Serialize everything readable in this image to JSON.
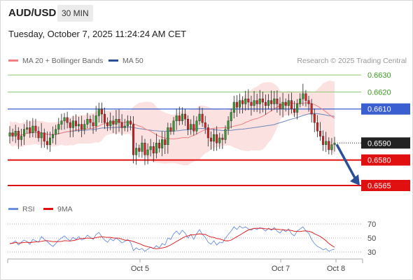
{
  "header": {
    "pair": "AUD/USD",
    "timeframe": "30 MIN",
    "datetime": "Tuesday, October 7, 2025 11:24:24 AM CET"
  },
  "legend": {
    "ma20_label": "MA 20 + Bollinger Bands",
    "ma50_label": "MA 50",
    "credit": "Research © 2025 Trading Central",
    "rsi_label": "RSI",
    "ma9_label": "9MA"
  },
  "colors": {
    "bullish_candle": "#2e9b2e",
    "bearish_candle": "#d42020",
    "bollinger_fill": "#fcdcdc",
    "ma20": "#f08080",
    "ma50": "#6e86b8",
    "resistance": "#8cc870",
    "pivot": "#3a5fd0",
    "support": "#e01010",
    "arrow": "#2a4f96",
    "rsi": "#6a8ee0",
    "rsi_ma": "#e01010"
  },
  "chart_data": [
    {
      "type": "candlestick",
      "title": "AUD/USD 30 MIN",
      "ylim": [
        0.6558,
        0.6635
      ],
      "x_ticks": [
        "Oct 5",
        "Oct 7",
        "Oct 8"
      ],
      "levels": [
        {
          "value": 0.663,
          "label": "0.6630",
          "kind": "resistance"
        },
        {
          "value": 0.662,
          "label": "0.6620",
          "kind": "resistance"
        },
        {
          "value": 0.661,
          "label": "0.6610",
          "kind": "pivot"
        },
        {
          "value": 0.659,
          "label": "0.6590",
          "kind": "last_price"
        },
        {
          "value": 0.658,
          "label": "0.6580",
          "kind": "support"
        },
        {
          "value": 0.6565,
          "label": "0.6565",
          "kind": "support"
        }
      ],
      "forecast_arrow": {
        "from": 0.659,
        "to": 0.6565
      },
      "series": [
        {
          "name": "Price",
          "close": [
            0.6596,
            0.6594,
            0.6597,
            0.6592,
            0.6594,
            0.6598,
            0.6599,
            0.6596,
            0.66,
            0.6597,
            0.6593,
            0.6596,
            0.6591,
            0.6589,
            0.6593,
            0.6595,
            0.6598,
            0.6601,
            0.6603,
            0.6605,
            0.6602,
            0.6599,
            0.6603,
            0.66,
            0.6601,
            0.6598,
            0.6601,
            0.6604,
            0.6602,
            0.66,
            0.6606,
            0.661,
            0.6607,
            0.6602,
            0.66,
            0.6603,
            0.6601,
            0.6604,
            0.6602,
            0.6599,
            0.66,
            0.6603,
            0.6601,
            0.6583,
            0.6587,
            0.6585,
            0.659,
            0.6583,
            0.6586,
            0.6588,
            0.6584,
            0.659,
            0.6587,
            0.6592,
            0.6589,
            0.6599,
            0.6597,
            0.6603,
            0.6606,
            0.6603,
            0.6607,
            0.6604,
            0.6598,
            0.6601,
            0.6597,
            0.6603,
            0.6607,
            0.6602,
            0.6599,
            0.6593,
            0.6591,
            0.6595,
            0.659,
            0.6593,
            0.6592,
            0.6598,
            0.6603,
            0.6608,
            0.6614,
            0.6611,
            0.6615,
            0.6613,
            0.6616,
            0.6614,
            0.6612,
            0.6615,
            0.6613,
            0.6616,
            0.6614,
            0.6612,
            0.6615,
            0.6613,
            0.6616,
            0.6613,
            0.661,
            0.6614,
            0.6612,
            0.6615,
            0.661,
            0.6608,
            0.6613,
            0.6616,
            0.6619,
            0.6615,
            0.6613,
            0.6607,
            0.6602,
            0.6597,
            0.6594,
            0.6589,
            0.6591,
            0.6586,
            0.6589,
            0.659
          ]
        },
        {
          "name": "MA 20",
          "values": []
        },
        {
          "name": "MA 50",
          "values": []
        }
      ]
    },
    {
      "type": "line",
      "title": "RSI",
      "ylim": [
        25,
        75
      ],
      "y_ticks": [
        70,
        50,
        30
      ],
      "series": [
        {
          "name": "RSI",
          "values": [
            42,
            43,
            46,
            40,
            44,
            47,
            45,
            41,
            48,
            46,
            44,
            52,
            48,
            45,
            41,
            38,
            42,
            47,
            50,
            53,
            49,
            46,
            51,
            48,
            52,
            47,
            49,
            54,
            51,
            48,
            55,
            58,
            52,
            47,
            44,
            49,
            46,
            50,
            47,
            43,
            45,
            48,
            44,
            32,
            36,
            33,
            35,
            31,
            34,
            37,
            35,
            39,
            36,
            42,
            40,
            50,
            48,
            56,
            60,
            55,
            61,
            57,
            50,
            55,
            48,
            56,
            62,
            55,
            51,
            44,
            41,
            46,
            40,
            44,
            43,
            50,
            55,
            60,
            66,
            62,
            67,
            64,
            66,
            63,
            61,
            64,
            62,
            65,
            63,
            60,
            64,
            61,
            65,
            60,
            57,
            62,
            59,
            63,
            56,
            53,
            60,
            63,
            66,
            60,
            57,
            48,
            42,
            38,
            36,
            33,
            35,
            31,
            33,
            34
          ]
        },
        {
          "name": "9MA",
          "values": []
        }
      ]
    }
  ]
}
